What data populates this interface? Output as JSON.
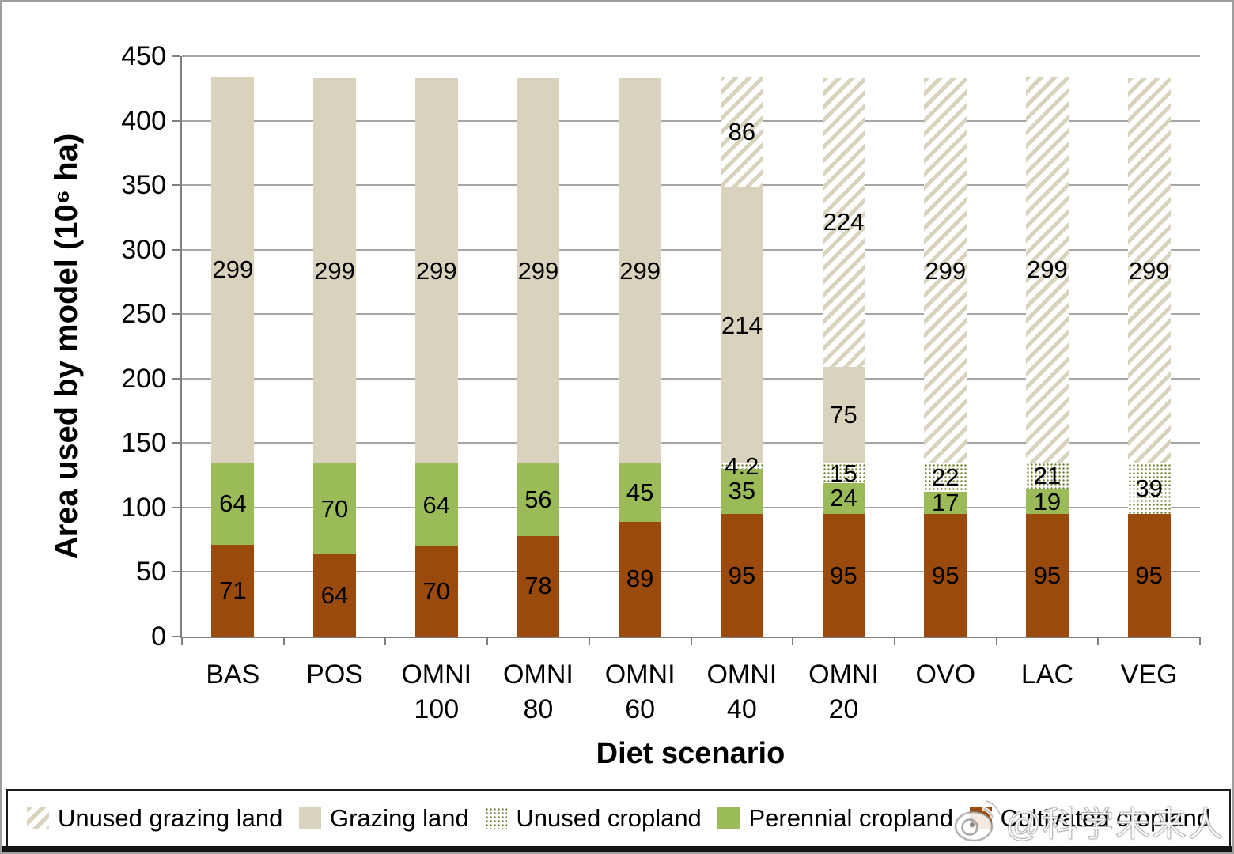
{
  "chart_data": {
    "type": "bar",
    "stacked": true,
    "title": "",
    "xlabel": "Diet scenario",
    "ylabel": "Area used by model (10⁶ ha)",
    "ylim": [
      0,
      450
    ],
    "ytick_step": 50,
    "yticks": [
      0,
      50,
      100,
      150,
      200,
      250,
      300,
      350,
      400,
      450
    ],
    "grid": true,
    "legend_position": "bottom",
    "categories": [
      "BAS",
      "POS",
      "OMNI 100",
      "OMNI 80",
      "OMNI 60",
      "OMNI 40",
      "OMNI 20",
      "OVO",
      "LAC",
      "VEG"
    ],
    "series": [
      {
        "name": "Cultivated cropland",
        "pattern": "solid-brown",
        "color": "#9a4a0d",
        "values": [
          71,
          64,
          70,
          78,
          89,
          95,
          95,
          95,
          95,
          95
        ]
      },
      {
        "name": "Perennial cropland",
        "pattern": "solid-green",
        "color": "#9bbb59",
        "values": [
          64,
          70,
          64,
          56,
          45,
          35,
          24,
          17,
          19,
          0
        ]
      },
      {
        "name": "Unused cropland",
        "pattern": "dots-green",
        "color": "#6e7f2c",
        "values": [
          0,
          0,
          0,
          0,
          0,
          4.2,
          15,
          22,
          21,
          39
        ]
      },
      {
        "name": "Grazing land",
        "pattern": "solid-tan",
        "color": "#d9d3be",
        "values": [
          299,
          299,
          299,
          299,
          299,
          214,
          75,
          0,
          0,
          0
        ]
      },
      {
        "name": "Unused grazing land",
        "pattern": "hatch-tan",
        "color": "#d9d3be",
        "values": [
          0,
          0,
          0,
          0,
          0,
          86,
          224,
          299,
          299,
          299
        ]
      }
    ],
    "legend": [
      {
        "label": "Unused grazing land",
        "pattern": "hatch-tan"
      },
      {
        "label": "Grazing land",
        "pattern": "solid-tan"
      },
      {
        "label": "Unused cropland",
        "pattern": "dots-green"
      },
      {
        "label": "Perennial cropland",
        "pattern": "solid-green"
      },
      {
        "label": "Cultivated cropland",
        "pattern": "solid-brown"
      }
    ],
    "colors": {
      "gridline": "#a6a6a6",
      "axis": "#7f7f7f",
      "cultivated_cropland": "#9a4a0d",
      "perennial_cropland": "#9bbb59",
      "grazing_land": "#d9d3be",
      "unused_cropland_dots": "#6e7f2c"
    }
  },
  "watermark": {
    "text": "@科学未来人",
    "logo": "weibo-logo"
  }
}
